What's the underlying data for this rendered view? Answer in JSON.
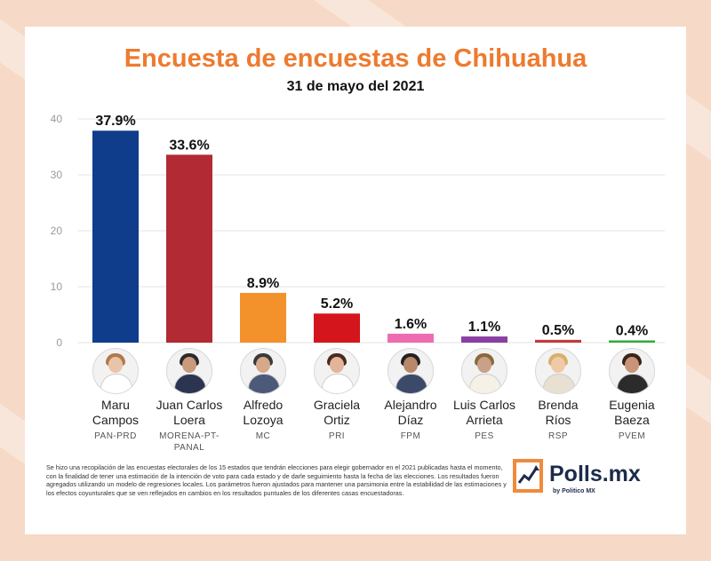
{
  "chart_data": {
    "type": "bar",
    "title": "Encuesta de encuestas de Chihuahua",
    "subtitle": "31 de mayo del 2021",
    "categories": [
      "Maru Campos",
      "Juan Carlos Loera",
      "Alfredo Lozoya",
      "Graciela Ortiz",
      "Alejandro Díaz",
      "Luis Carlos Arrieta",
      "Brenda Ríos",
      "Eugenia Baeza"
    ],
    "values": [
      37.9,
      33.6,
      8.9,
      5.2,
      1.6,
      1.1,
      0.5,
      0.4
    ],
    "data_labels": [
      "37.9%",
      "33.6%",
      "8.9%",
      "5.2%",
      "1.6%",
      "1.1%",
      "0.5%",
      "0.4%"
    ],
    "colors": [
      "#0f3d8c",
      "#b12a34",
      "#f3922a",
      "#d4151c",
      "#ee6db1",
      "#8a3fa2",
      "#c23a3f",
      "#36a93e"
    ],
    "ylim": [
      0,
      40
    ],
    "yticks": [
      "0",
      "10",
      "20",
      "30",
      "40"
    ],
    "grid": true,
    "xlabel": "",
    "ylabel": ""
  },
  "candidates": [
    {
      "name_line1": "Maru",
      "name_line2": "Campos",
      "party_line1": "PAN-PRD",
      "party_line2": ""
    },
    {
      "name_line1": "Juan Carlos",
      "name_line2": "Loera",
      "party_line1": "MORENA-PT-",
      "party_line2": "PANAL"
    },
    {
      "name_line1": "Alfredo",
      "name_line2": "Lozoya",
      "party_line1": "MC",
      "party_line2": ""
    },
    {
      "name_line1": "Graciela",
      "name_line2": "Ortiz",
      "party_line1": "PRI",
      "party_line2": ""
    },
    {
      "name_line1": "Alejandro",
      "name_line2": "Díaz",
      "party_line1": "FPM",
      "party_line2": ""
    },
    {
      "name_line1": "Luis Carlos",
      "name_line2": "Arrieta",
      "party_line1": "PES",
      "party_line2": ""
    },
    {
      "name_line1": "Brenda",
      "name_line2": "Ríos",
      "party_line1": "RSP",
      "party_line2": ""
    },
    {
      "name_line1": "Eugenia",
      "name_line2": "Baeza",
      "party_line1": "PVEM",
      "party_line2": ""
    }
  ],
  "footer": {
    "note": "Se hizo una recopilación de las encuestas electorales de los 15 estados que tendrán elecciones para elegir gobernador en el 2021 publicadas hasta el momento, con la finalidad de tener una estimación de la intención de voto para cada estado y de darle seguimiento hasta la fecha de las elecciones. Los resultados fueron agregados utilizando un modelo de regresiones locales. Los parámetros fueron ajustados para mantener una parsimonia entre la estabilidad de las estimaciones y los efectos coyunturales que se ven reflejados en cambios en los resultados puntuales de los diferentes casas encuestadoras.",
    "logo_text": "Polls.mx",
    "logo_sub": "by Politico MX"
  },
  "colors": {
    "title": "#ee7a2e",
    "brand": "#1c2b4a",
    "accent": "#f08a3c"
  }
}
